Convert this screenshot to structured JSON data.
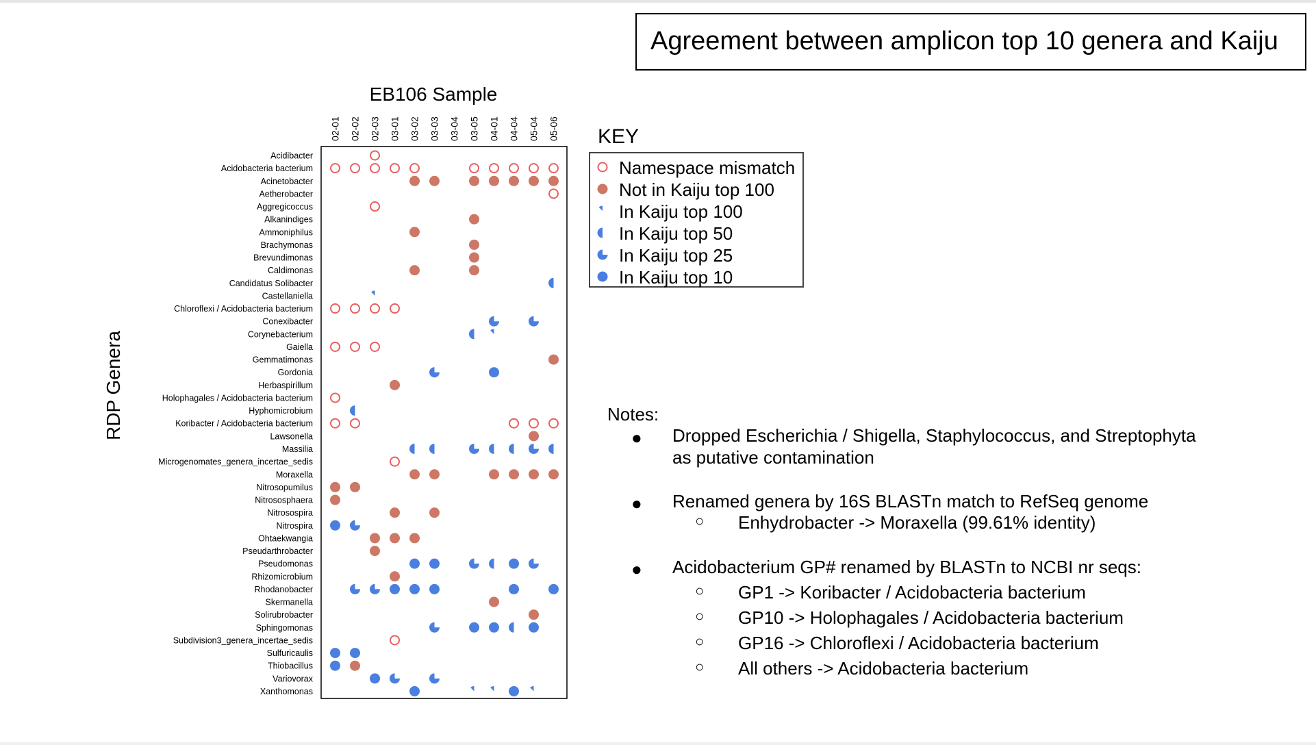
{
  "slide_title": "Agreement between amplicon top 10 genera and Kaiju",
  "colors": {
    "salmon": "#cd7767",
    "red_ring": "#e86060",
    "blue": "#4a7fe0"
  },
  "chart_data": {
    "type": "scatter",
    "subtype": "dot-matrix",
    "title": "EB106 Sample",
    "ylabel": "RDP Genera",
    "columns": [
      "02-01",
      "02-02",
      "02-03",
      "03-01",
      "03-02",
      "03-03",
      "03-04",
      "03-05",
      "04-01",
      "04-04",
      "05-04",
      "05-06"
    ],
    "rows": [
      "Acidibacter",
      "Acidobacteria bacterium",
      "Acinetobacter",
      "Aetherobacter",
      "Aggregicoccus",
      "Alkanindiges",
      "Ammoniphilus",
      "Brachymonas",
      "Brevundimonas",
      "Caldimonas",
      "Candidatus Solibacter",
      "Castellaniella",
      "Chloroflexi / Acidobacteria bacterium",
      "Conexibacter",
      "Corynebacterium",
      "Gaiella",
      "Gemmatimonas",
      "Gordonia",
      "Herbaspirillum",
      "Holophagales / Acidobacteria bacterium",
      "Hyphomicrobium",
      "Koribacter / Acidobacteria bacterium",
      "Lawsonella",
      "Massilia",
      "Microgenomates_genera_incertae_sedis",
      "Moraxella",
      "Nitrosopumilus",
      "Nitrososphaera",
      "Nitrosospira",
      "Nitrospira",
      "Ohtaekwangia",
      "Pseudarthrobacter",
      "Pseudomonas",
      "Rhizomicrobium",
      "Rhodanobacter",
      "Skermanella",
      "Solirubrobacter",
      "Sphingomonas",
      "Subdivision3_genera_incertae_sedis",
      "Sulfuricaulis",
      "Thiobacillus",
      "Variovorax",
      "Xanthomonas"
    ],
    "legend_title": "KEY",
    "legend": [
      {
        "code": "M",
        "label": "Namespace mismatch"
      },
      {
        "code": "N",
        "label": "Not in Kaiju top 100"
      },
      {
        "code": "100",
        "label": "In Kaiju top 100"
      },
      {
        "code": "50",
        "label": "In Kaiju top 50"
      },
      {
        "code": "25",
        "label": "In Kaiju top 25"
      },
      {
        "code": "10",
        "label": "In Kaiju top 10"
      }
    ],
    "points": [
      [
        "Acidibacter",
        "02-03",
        "M"
      ],
      [
        "Acidobacteria bacterium",
        "02-01",
        "M"
      ],
      [
        "Acidobacteria bacterium",
        "02-02",
        "M"
      ],
      [
        "Acidobacteria bacterium",
        "02-03",
        "M"
      ],
      [
        "Acidobacteria bacterium",
        "03-01",
        "M"
      ],
      [
        "Acidobacteria bacterium",
        "03-02",
        "M"
      ],
      [
        "Acidobacteria bacterium",
        "03-05",
        "M"
      ],
      [
        "Acidobacteria bacterium",
        "04-01",
        "M"
      ],
      [
        "Acidobacteria bacterium",
        "04-04",
        "M"
      ],
      [
        "Acidobacteria bacterium",
        "05-04",
        "M"
      ],
      [
        "Acidobacteria bacterium",
        "05-06",
        "M"
      ],
      [
        "Acinetobacter",
        "03-02",
        "N"
      ],
      [
        "Acinetobacter",
        "03-03",
        "N"
      ],
      [
        "Acinetobacter",
        "03-05",
        "N"
      ],
      [
        "Acinetobacter",
        "04-01",
        "N"
      ],
      [
        "Acinetobacter",
        "04-04",
        "N"
      ],
      [
        "Acinetobacter",
        "05-04",
        "N"
      ],
      [
        "Acinetobacter",
        "05-06",
        "N"
      ],
      [
        "Aetherobacter",
        "05-06",
        "M"
      ],
      [
        "Aggregicoccus",
        "02-03",
        "M"
      ],
      [
        "Alkanindiges",
        "03-05",
        "N"
      ],
      [
        "Ammoniphilus",
        "03-02",
        "N"
      ],
      [
        "Brachymonas",
        "03-05",
        "N"
      ],
      [
        "Brevundimonas",
        "03-05",
        "N"
      ],
      [
        "Caldimonas",
        "03-02",
        "N"
      ],
      [
        "Caldimonas",
        "03-05",
        "N"
      ],
      [
        "Candidatus Solibacter",
        "05-06",
        "50"
      ],
      [
        "Castellaniella",
        "02-03",
        "100"
      ],
      [
        "Chloroflexi / Acidobacteria bacterium",
        "02-01",
        "M"
      ],
      [
        "Chloroflexi / Acidobacteria bacterium",
        "02-02",
        "M"
      ],
      [
        "Chloroflexi / Acidobacteria bacterium",
        "02-03",
        "M"
      ],
      [
        "Chloroflexi / Acidobacteria bacterium",
        "03-01",
        "M"
      ],
      [
        "Conexibacter",
        "04-01",
        "25"
      ],
      [
        "Conexibacter",
        "05-04",
        "25"
      ],
      [
        "Corynebacterium",
        "03-05",
        "50"
      ],
      [
        "Corynebacterium",
        "04-01",
        "100"
      ],
      [
        "Gaiella",
        "02-01",
        "M"
      ],
      [
        "Gaiella",
        "02-02",
        "M"
      ],
      [
        "Gaiella",
        "02-03",
        "M"
      ],
      [
        "Gemmatimonas",
        "05-06",
        "N"
      ],
      [
        "Gordonia",
        "03-03",
        "25"
      ],
      [
        "Gordonia",
        "04-01",
        "10"
      ],
      [
        "Herbaspirillum",
        "03-01",
        "N"
      ],
      [
        "Holophagales / Acidobacteria bacterium",
        "02-01",
        "M"
      ],
      [
        "Hyphomicrobium",
        "02-02",
        "50"
      ],
      [
        "Koribacter / Acidobacteria bacterium",
        "02-01",
        "M"
      ],
      [
        "Koribacter / Acidobacteria bacterium",
        "02-02",
        "M"
      ],
      [
        "Koribacter / Acidobacteria bacterium",
        "04-04",
        "M"
      ],
      [
        "Koribacter / Acidobacteria bacterium",
        "05-04",
        "M"
      ],
      [
        "Koribacter / Acidobacteria bacterium",
        "05-06",
        "M"
      ],
      [
        "Lawsonella",
        "05-04",
        "N"
      ],
      [
        "Massilia",
        "03-02",
        "50"
      ],
      [
        "Massilia",
        "03-03",
        "50"
      ],
      [
        "Massilia",
        "03-05",
        "25"
      ],
      [
        "Massilia",
        "04-01",
        "50"
      ],
      [
        "Massilia",
        "04-04",
        "50"
      ],
      [
        "Massilia",
        "05-04",
        "25"
      ],
      [
        "Massilia",
        "05-06",
        "50"
      ],
      [
        "Microgenomates_genera_incertae_sedis",
        "03-01",
        "M"
      ],
      [
        "Moraxella",
        "03-02",
        "N"
      ],
      [
        "Moraxella",
        "03-03",
        "N"
      ],
      [
        "Moraxella",
        "04-01",
        "N"
      ],
      [
        "Moraxella",
        "04-04",
        "N"
      ],
      [
        "Moraxella",
        "05-04",
        "N"
      ],
      [
        "Moraxella",
        "05-06",
        "N"
      ],
      [
        "Nitrosopumilus",
        "02-01",
        "N"
      ],
      [
        "Nitrosopumilus",
        "02-02",
        "N"
      ],
      [
        "Nitrososphaera",
        "02-01",
        "N"
      ],
      [
        "Nitrosospira",
        "03-01",
        "N"
      ],
      [
        "Nitrosospira",
        "03-03",
        "N"
      ],
      [
        "Nitrospira",
        "02-01",
        "10"
      ],
      [
        "Nitrospira",
        "02-02",
        "25"
      ],
      [
        "Ohtaekwangia",
        "02-03",
        "N"
      ],
      [
        "Ohtaekwangia",
        "03-01",
        "N"
      ],
      [
        "Ohtaekwangia",
        "03-02",
        "N"
      ],
      [
        "Pseudarthrobacter",
        "02-03",
        "N"
      ],
      [
        "Pseudomonas",
        "03-02",
        "10"
      ],
      [
        "Pseudomonas",
        "03-03",
        "10"
      ],
      [
        "Pseudomonas",
        "03-05",
        "25"
      ],
      [
        "Pseudomonas",
        "04-01",
        "50"
      ],
      [
        "Pseudomonas",
        "04-04",
        "10"
      ],
      [
        "Pseudomonas",
        "05-04",
        "25"
      ],
      [
        "Rhizomicrobium",
        "03-01",
        "N"
      ],
      [
        "Rhodanobacter",
        "02-02",
        "25"
      ],
      [
        "Rhodanobacter",
        "02-03",
        "25"
      ],
      [
        "Rhodanobacter",
        "03-01",
        "10"
      ],
      [
        "Rhodanobacter",
        "03-02",
        "10"
      ],
      [
        "Rhodanobacter",
        "03-03",
        "10"
      ],
      [
        "Rhodanobacter",
        "04-04",
        "10"
      ],
      [
        "Rhodanobacter",
        "05-06",
        "10"
      ],
      [
        "Skermanella",
        "04-01",
        "N"
      ],
      [
        "Solirubrobacter",
        "05-04",
        "N"
      ],
      [
        "Sphingomonas",
        "03-03",
        "25"
      ],
      [
        "Sphingomonas",
        "03-05",
        "10"
      ],
      [
        "Sphingomonas",
        "04-01",
        "10"
      ],
      [
        "Sphingomonas",
        "04-04",
        "50"
      ],
      [
        "Sphingomonas",
        "05-04",
        "10"
      ],
      [
        "Subdivision3_genera_incertae_sedis",
        "03-01",
        "M"
      ],
      [
        "Sulfuricaulis",
        "02-01",
        "10"
      ],
      [
        "Sulfuricaulis",
        "02-02",
        "10"
      ],
      [
        "Thiobacillus",
        "02-01",
        "10"
      ],
      [
        "Thiobacillus",
        "02-02",
        "N"
      ],
      [
        "Variovorax",
        "02-03",
        "10"
      ],
      [
        "Variovorax",
        "03-01",
        "25"
      ],
      [
        "Variovorax",
        "03-03",
        "25"
      ],
      [
        "Xanthomonas",
        "03-02",
        "10"
      ],
      [
        "Xanthomonas",
        "03-05",
        "100"
      ],
      [
        "Xanthomonas",
        "04-01",
        "100"
      ],
      [
        "Xanthomonas",
        "04-04",
        "10"
      ],
      [
        "Xanthomonas",
        "05-04",
        "100"
      ]
    ]
  },
  "notes": {
    "title": "Notes:",
    "bullet1": "Dropped Escherichia / Shigella, Staphylococcus, and Streptophyta",
    "bullet1_cont": "as putative contamination",
    "bullet2": "Renamed genera by 16S BLASTn match to RefSeq genome",
    "bullet2_sub1": "Enhydrobacter -> Moraxella (99.61% identity)",
    "bullet3": "Acidobacterium GP# renamed by BLASTn to NCBI nr seqs:",
    "bullet3_sub1": "GP1 -> Koribacter / Acidobacteria bacterium",
    "bullet3_sub2": "GP10 -> Holophagales / Acidobacteria bacterium",
    "bullet3_sub3": "GP16 -> Chloroflexi / Acidobacteria bacterium",
    "bullet3_sub4": "All others -> Acidobacteria bacterium"
  }
}
